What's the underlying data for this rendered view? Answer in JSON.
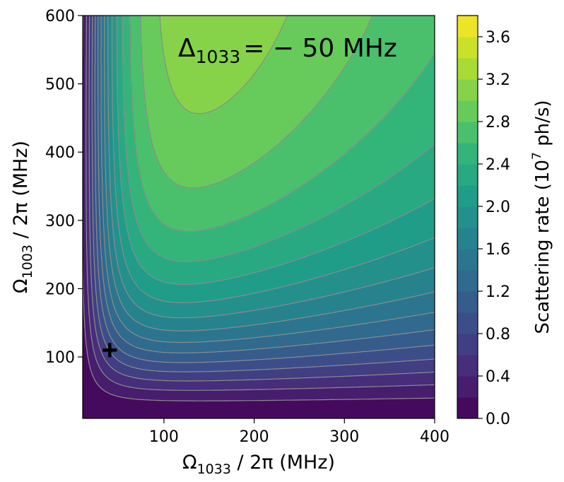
{
  "chart_data": {
    "type": "heatmap",
    "subtype": "filled-contour",
    "annotation": {
      "symbol": "Δ",
      "subscript": "1033",
      "equals_value": "= − 50 MHz"
    },
    "xlabel": {
      "symbol": "Ω",
      "subscript": "1033",
      "rest": " / 2π (MHz)"
    },
    "ylabel": {
      "symbol": "Ω",
      "subscript": "1003",
      "rest": " / 2π (MHz)"
    },
    "xlim": [
      10,
      400
    ],
    "ylim": [
      10,
      600
    ],
    "x_ticks": [
      100,
      200,
      300,
      400
    ],
    "y_ticks": [
      100,
      200,
      300,
      400,
      500,
      600
    ],
    "colorbar": {
      "label_prefix": "Scattering rate (10",
      "label_sup": "7",
      "label_suffix": " ph/s)",
      "range": [
        0.0,
        3.8
      ],
      "level_step": 0.2,
      "ticks": [
        0.0,
        0.4,
        0.8,
        1.2,
        1.6,
        2.0,
        2.4,
        2.8,
        3.2,
        3.6
      ],
      "colormap": "viridis"
    },
    "marker": {
      "symbol": "+",
      "x": 40,
      "y": 110
    },
    "contour_line_color": "#8c8c8c"
  }
}
